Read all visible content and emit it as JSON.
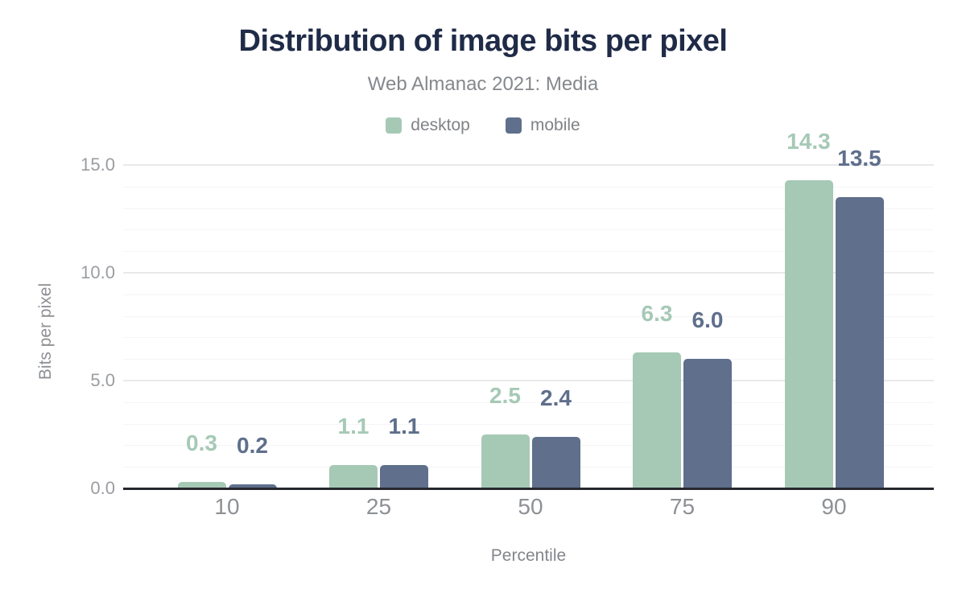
{
  "chart": {
    "title": "Distribution of image bits per pixel",
    "subtitle": "Web Almanac 2021: Media"
  },
  "chart_data": {
    "type": "bar",
    "categories": [
      "10",
      "25",
      "50",
      "75",
      "90"
    ],
    "series": [
      {
        "name": "desktop",
        "color": "#a6c9b6",
        "values": [
          0.3,
          1.1,
          2.5,
          6.3,
          14.3
        ],
        "labels": [
          "0.3",
          "1.1",
          "2.5",
          "6.3",
          "14.3"
        ]
      },
      {
        "name": "mobile",
        "color": "#5f6f8c",
        "values": [
          0.2,
          1.1,
          2.4,
          6.0,
          13.5
        ],
        "labels": [
          "0.2",
          "1.1",
          "2.4",
          "6.0",
          "13.5"
        ]
      }
    ],
    "title": "Distribution of image bits per pixel",
    "subtitle": "Web Almanac 2021: Media",
    "xlabel": "Percentile",
    "ylabel": "Bits per pixel",
    "ylim": [
      0,
      15
    ],
    "yticks": [
      0,
      5,
      10,
      15
    ],
    "ytick_labels": [
      "0.0",
      "5.0",
      "10.0",
      "15.0"
    ],
    "minor_grid_step": 1,
    "grid": true,
    "legend_position": "top",
    "value_labels_shown": true
  },
  "colors": {
    "title_text": "#1f2b47",
    "subtitle_text": "#85888c",
    "axis_line": "#26282e",
    "tick_label": "#9a9da1",
    "axis_title": "#8d9094",
    "grid_major": "#e9e9eb",
    "grid_minor": "#f5f5f7",
    "background": "#ffffff",
    "desktop_series": "#a6c9b6",
    "mobile_series": "#5f6f8c"
  }
}
